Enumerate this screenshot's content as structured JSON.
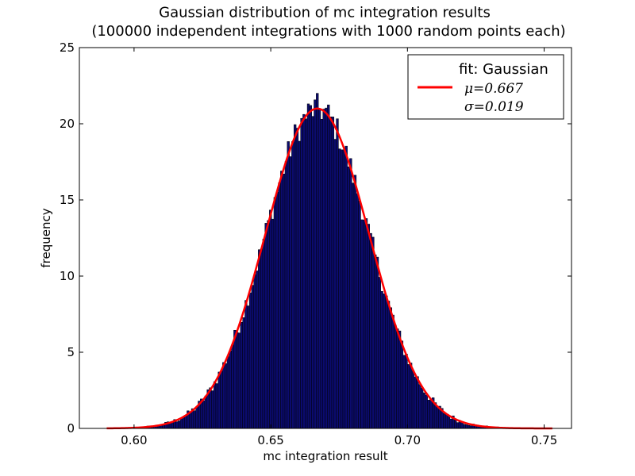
{
  "chart_data": {
    "type": "bar",
    "title": "Gaussian distribution of mc integration results",
    "subtitle": "(100000 independent integrations with 1000 random points each)",
    "xlabel": "mc integration result",
    "ylabel": "frequency",
    "xlim": [
      0.58,
      0.76
    ],
    "ylim": [
      0,
      25
    ],
    "xticks": [
      "0.60",
      "0.65",
      "0.70",
      "0.75"
    ],
    "yticks": [
      "0",
      "5",
      "10",
      "15",
      "20",
      "25"
    ],
    "grid": false,
    "legend_position": "top-right",
    "colors": {
      "bars": "#0b0b6e",
      "bar_edge": "#000000",
      "fit_line": "#ff0000"
    },
    "histogram": {
      "x_start": 0.59,
      "x_end": 0.753,
      "bins": 200,
      "mean": 0.667,
      "sigma": 0.019
    },
    "series": [
      {
        "name": "fit: Gaussian",
        "type": "line",
        "mu": 0.667,
        "sigma": 0.019,
        "peak": 21.0
      }
    ],
    "legend": {
      "title": "fit: Gaussian",
      "line1": "μ=0.667",
      "line2": "σ=0.019"
    }
  }
}
